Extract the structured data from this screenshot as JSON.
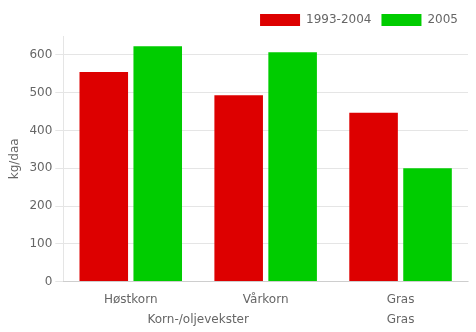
{
  "chart_data": {
    "type": "bar",
    "categories": [
      "Høstkorn",
      "Vårkorn",
      "Gras"
    ],
    "series": [
      {
        "name": "1993-2004",
        "color": "#dd0000",
        "values": [
          555,
          493,
          447
        ]
      },
      {
        "name": "2005",
        "color": "#00cc00",
        "values": [
          623,
          607,
          300
        ]
      }
    ],
    "ylabel": "kg/daa",
    "ylim": [
      0,
      650
    ],
    "yticks": [
      0,
      100,
      200,
      300,
      400,
      500,
      600
    ],
    "grid": true,
    "legend": "upper right",
    "annotations": [
      {
        "text": "Korn-/oljevekster",
        "categories": [
          "Høstkorn",
          "Vårkorn"
        ]
      },
      {
        "text": "Gras",
        "categories": [
          "Gras"
        ]
      }
    ]
  }
}
